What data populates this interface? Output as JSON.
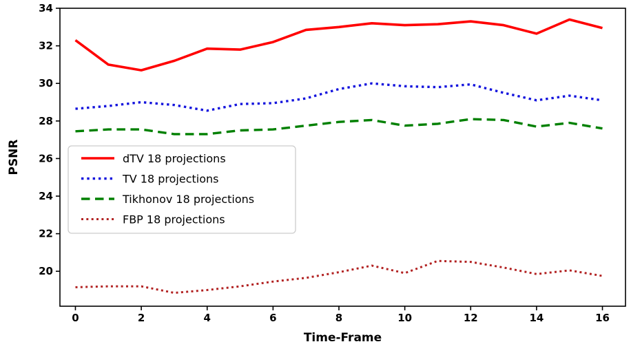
{
  "chart_data": {
    "type": "line",
    "title": "",
    "xlabel": "Time-Frame",
    "ylabel": "PSNR",
    "x": [
      0,
      1,
      2,
      3,
      4,
      5,
      6,
      7,
      8,
      9,
      10,
      11,
      12,
      13,
      14,
      15,
      16
    ],
    "xlim": [
      -0.47,
      16.7
    ],
    "ylim": [
      18.14,
      34
    ],
    "xticks": [
      0,
      2,
      4,
      6,
      8,
      10,
      12,
      14,
      16
    ],
    "yticks": [
      20,
      22,
      24,
      26,
      28,
      30,
      32,
      34
    ],
    "grid": false,
    "legend_position": "upper-left-inside",
    "axis_color": "#000000",
    "legend_border_color": "#cccccc",
    "series": [
      {
        "name": "dTV 18 projections",
        "color": "#ff0000",
        "linestyle": "solid",
        "values": [
          32.3,
          31.0,
          30.7,
          31.2,
          31.85,
          31.8,
          32.2,
          32.85,
          33.0,
          33.2,
          33.1,
          33.15,
          33.3,
          33.1,
          32.65,
          33.4,
          32.95
        ]
      },
      {
        "name": "TV 18 projections",
        "color": "#1414dd",
        "linestyle": "dotted",
        "values": [
          28.65,
          28.8,
          29.0,
          28.85,
          28.55,
          28.9,
          28.95,
          29.2,
          29.7,
          30.0,
          29.85,
          29.8,
          29.95,
          29.5,
          29.1,
          29.35,
          29.1
        ]
      },
      {
        "name": "Tikhonov 18 projections",
        "color": "#008000",
        "linestyle": "dashed",
        "values": [
          27.45,
          27.55,
          27.55,
          27.3,
          27.3,
          27.5,
          27.55,
          27.75,
          27.95,
          28.05,
          27.75,
          27.85,
          28.1,
          28.05,
          27.7,
          27.9,
          27.6
        ]
      },
      {
        "name": "FBP 18 projections",
        "color": "#b22222",
        "linestyle": "dotted",
        "values": [
          19.15,
          19.2,
          19.2,
          18.85,
          19.0,
          19.2,
          19.45,
          19.65,
          19.95,
          20.3,
          19.9,
          20.55,
          20.5,
          20.2,
          19.85,
          20.05,
          19.75
        ]
      }
    ]
  }
}
